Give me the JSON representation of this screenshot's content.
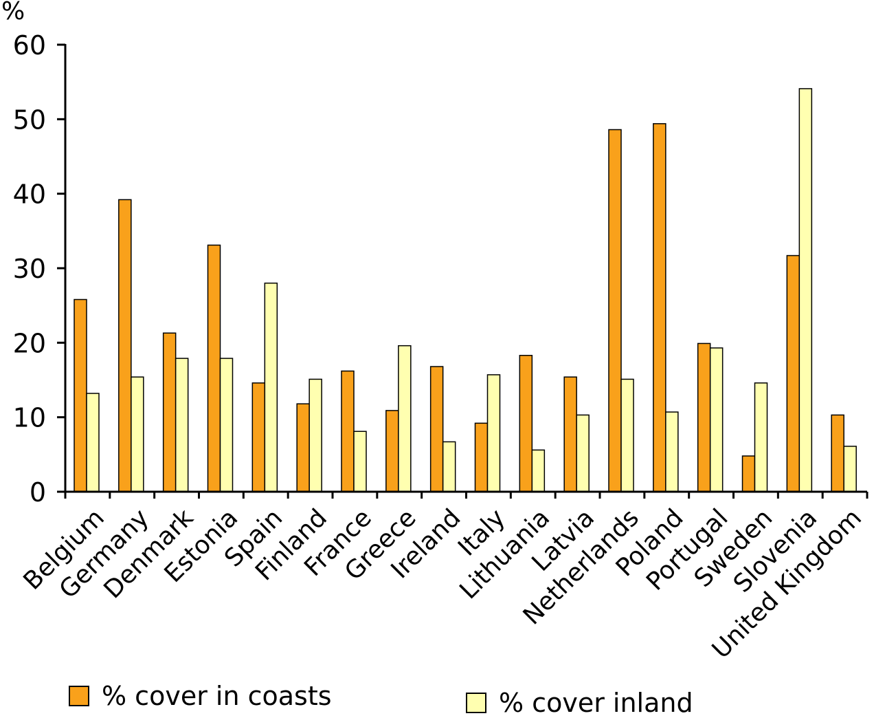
{
  "chart_data": {
    "type": "bar",
    "ylabel": "%",
    "ylim": [
      0,
      60
    ],
    "yticks": [
      0,
      10,
      20,
      30,
      40,
      50,
      60
    ],
    "categories": [
      "Belgium",
      "Germany",
      "Denmark",
      "Estonia",
      "Spain",
      "Finland",
      "France",
      "Greece",
      "Ireland",
      "Italy",
      "Lithuania",
      "Latvia",
      "Netherlands",
      "Poland",
      "Portugal",
      "Sweden",
      "Slovenia",
      "United Kingdom"
    ],
    "series": [
      {
        "name": "% cover in coasts",
        "color": "#f9a11b",
        "values": [
          25.8,
          39.2,
          21.3,
          33.1,
          14.6,
          11.8,
          16.2,
          10.9,
          16.8,
          9.2,
          18.3,
          15.4,
          48.6,
          49.4,
          19.9,
          4.8,
          31.7,
          10.3
        ]
      },
      {
        "name": "% cover inland",
        "color": "#ffffb0",
        "values": [
          13.2,
          15.4,
          17.9,
          17.9,
          28.0,
          15.1,
          8.1,
          19.6,
          6.7,
          15.7,
          5.6,
          10.3,
          15.1,
          10.7,
          19.3,
          14.6,
          54.1,
          6.1
        ]
      }
    ]
  }
}
